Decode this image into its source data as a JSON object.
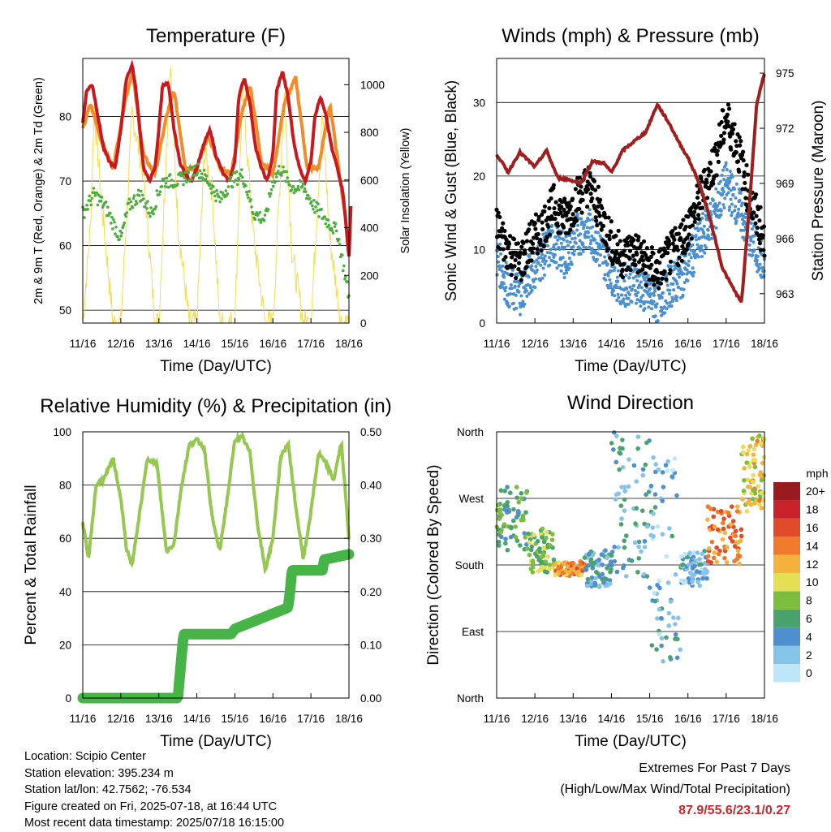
{
  "chart_data": [
    {
      "type": "line",
      "title": "Temperature (F)",
      "xlabel": "Time (Day/UTC)",
      "ylabel": "2m & 9m T (Red, Orange) & 2m Td (Green)",
      "ylabel_right": "Solar Insolation (Yellow)",
      "x_ticks": [
        "11/16",
        "12/16",
        "13/16",
        "14/16",
        "15/16",
        "16/16",
        "17/16",
        "18/16"
      ],
      "ylim": [
        48,
        89
      ],
      "y_ticks": [
        50,
        60,
        70,
        80
      ],
      "ylim_right": [
        0,
        1110
      ],
      "y_ticks_right": [
        0,
        200,
        400,
        600,
        800,
        1000
      ],
      "grid": true,
      "colors": {
        "t2m": "#c8191e",
        "t9m": "#f28c28",
        "td2m": "#4caf3c",
        "solar": "#f5dc50"
      },
      "series": [
        {
          "name": "2m T",
          "x": [
            0,
            0.1,
            0.25,
            0.4,
            0.55,
            0.7,
            0.85,
            1,
            1.15,
            1.3,
            1.4,
            1.5,
            1.6,
            1.75,
            1.9,
            2,
            2.1,
            2.25,
            2.4,
            2.55,
            2.7,
            2.85,
            3,
            3.2,
            3.35,
            3.5,
            3.7,
            3.85,
            4,
            4.1,
            4.25,
            4.4,
            4.55,
            4.7,
            4.85,
            5,
            5.1,
            5.25,
            5.4,
            5.55,
            5.7,
            5.85,
            6,
            6.1,
            6.25,
            6.4,
            6.55,
            6.7,
            6.85,
            7,
            7.05
          ],
          "values": [
            79,
            84,
            85,
            80,
            75,
            73,
            72,
            78,
            86,
            88,
            84,
            78,
            72,
            70,
            72,
            78,
            85,
            85,
            78,
            73,
            71,
            70,
            72,
            76,
            78,
            74,
            71,
            70,
            73,
            83,
            86,
            82,
            75,
            72,
            70,
            74,
            84,
            87,
            83,
            76,
            72,
            70,
            73,
            80,
            83,
            80,
            75,
            72,
            68,
            58,
            66
          ]
        },
        {
          "name": "9m T",
          "x": [
            0,
            0.2,
            0.5,
            0.8,
            1.1,
            1.3,
            1.6,
            1.9,
            2.2,
            2.4,
            2.7,
            3,
            3.3,
            3.6,
            3.9,
            4.2,
            4.4,
            4.7,
            5,
            5.3,
            5.6,
            5.9,
            6.2,
            6.5,
            6.8,
            7
          ],
          "values": [
            78,
            82,
            76,
            72,
            82,
            87,
            74,
            71,
            80,
            84,
            72,
            72,
            77,
            72,
            71,
            81,
            85,
            73,
            71,
            82,
            86,
            72,
            72,
            82,
            69,
            60
          ]
        },
        {
          "name": "2m Td",
          "x": [
            0,
            0.3,
            0.6,
            1,
            1.2,
            1.5,
            1.8,
            2.1,
            2.5,
            2.8,
            3,
            3.3,
            3.6,
            3.9,
            4.2,
            4.5,
            4.8,
            5,
            5.2,
            5.5,
            5.8,
            6.1,
            6.4,
            6.7,
            7
          ],
          "values": [
            65,
            68,
            66,
            61,
            66,
            68,
            65,
            70,
            70,
            71,
            72,
            70,
            67,
            70,
            71,
            65,
            64,
            70,
            72,
            69,
            69,
            66,
            64,
            62,
            52
          ]
        },
        {
          "name": "Solar Insolation",
          "axis": "right",
          "x": [
            0,
            0.2,
            0.3,
            0.5,
            0.8,
            1,
            1.3,
            1.6,
            1.9,
            2,
            2.3,
            2.5,
            2.8,
            3,
            3.2,
            3.4,
            3.6,
            4,
            4.2,
            4.5,
            4.8,
            5,
            5.3,
            5.5,
            5.8,
            6,
            6.3,
            6.5,
            6.8,
            7
          ],
          "values": [
            0,
            400,
            900,
            500,
            0,
            0,
            880,
            620,
            0,
            0,
            1100,
            420,
            0,
            0,
            720,
            560,
            0,
            0,
            980,
            350,
            0,
            0,
            960,
            300,
            0,
            0,
            880,
            350,
            0,
            0
          ]
        }
      ]
    },
    {
      "type": "scatter",
      "title": "Winds (mph) & Pressure (mb)",
      "xlabel": "Time (Day/UTC)",
      "ylabel": "Sonic Wind & Gust (Blue, Black)",
      "ylabel_right": "Station Pressure (Maroon)",
      "x_ticks": [
        "11/16",
        "12/16",
        "13/16",
        "14/16",
        "15/16",
        "16/16",
        "17/16",
        "18/16"
      ],
      "ylim": [
        0,
        36
      ],
      "y_ticks": [
        0,
        10,
        20,
        30
      ],
      "ylim_right": [
        961.4,
        975.8
      ],
      "y_ticks_right": [
        963,
        966,
        969,
        972,
        975
      ],
      "grid": true,
      "colors": {
        "wind": "#4a90d0",
        "gust": "#000000",
        "pressure": "#a01e1e"
      },
      "series": [
        {
          "name": "Sonic Wind",
          "x": [
            0,
            0.3,
            0.6,
            0.9,
            1.2,
            1.5,
            1.8,
            2.1,
            2.4,
            2.7,
            3,
            3.3,
            3.6,
            3.9,
            4.2,
            4.5,
            4.8,
            5.1,
            5.4,
            5.7,
            6,
            6.3,
            6.6,
            6.9,
            7
          ],
          "values": [
            9,
            5,
            4,
            7,
            9,
            11,
            9,
            12,
            13,
            10,
            7,
            5,
            6,
            4,
            3,
            5,
            6,
            9,
            12,
            15,
            19,
            16,
            12,
            9,
            6
          ]
        },
        {
          "name": "Gust",
          "x": [
            0,
            0.3,
            0.6,
            0.9,
            1.2,
            1.5,
            1.8,
            2.1,
            2.4,
            2.7,
            3,
            3.3,
            3.6,
            3.9,
            4.2,
            4.5,
            4.8,
            5.1,
            5.4,
            5.7,
            6,
            6.3,
            6.6,
            6.9,
            7
          ],
          "values": [
            13,
            10,
            8,
            11,
            13,
            16,
            14,
            17,
            19,
            15,
            11,
            9,
            10,
            8,
            7,
            9,
            11,
            14,
            18,
            22,
            28,
            24,
            17,
            13,
            10
          ]
        },
        {
          "name": "Station Pressure",
          "axis": "right",
          "x": [
            0,
            0.3,
            0.6,
            1,
            1.3,
            1.6,
            1.9,
            2.2,
            2.5,
            2.8,
            3,
            3.3,
            3.6,
            3.9,
            4.2,
            4.5,
            4.8,
            5,
            5.3,
            5.6,
            5.9,
            6.1,
            6.4,
            6.6,
            6.8,
            7
          ],
          "values": [
            970.6,
            969.6,
            970.7,
            969.9,
            970.8,
            969.3,
            969.2,
            969.0,
            970.2,
            970.1,
            969.6,
            970.8,
            971.3,
            971.8,
            973.3,
            972.3,
            971.1,
            970.4,
            969.0,
            966.9,
            964.4,
            963.6,
            962.5,
            967.6,
            973.4,
            975.0
          ]
        }
      ]
    },
    {
      "type": "line",
      "title": "Relative Humidity (%) & Precipitation (in)",
      "xlabel": "Time (Day/UTC)",
      "ylabel": "Percent & Total Rainfall",
      "x_ticks": [
        "11/16",
        "12/16",
        "13/16",
        "14/16",
        "15/16",
        "16/16",
        "17/16",
        "18/16"
      ],
      "ylim": [
        0,
        100
      ],
      "y_ticks": [
        0,
        20,
        40,
        60,
        80,
        100
      ],
      "ylim_right": [
        0,
        0.5
      ],
      "y_ticks_right": [
        "0.00",
        "0.10",
        "0.20",
        "0.30",
        "0.40",
        "0.50"
      ],
      "grid": true,
      "colors": {
        "rh": "#96c850",
        "precip": "#46b446"
      },
      "series": [
        {
          "name": "Relative Humidity",
          "x": [
            0,
            0.15,
            0.35,
            0.55,
            0.8,
            1,
            1.15,
            1.3,
            1.5,
            1.7,
            1.95,
            2.2,
            2.4,
            2.6,
            2.8,
            3,
            3.2,
            3.4,
            3.6,
            3.8,
            4,
            4.2,
            4.4,
            4.6,
            4.8,
            5,
            5.2,
            5.4,
            5.6,
            5.8,
            6,
            6.2,
            6.4,
            6.6,
            6.8,
            7
          ],
          "values": [
            66,
            52,
            80,
            82,
            90,
            75,
            56,
            50,
            70,
            90,
            88,
            55,
            58,
            80,
            95,
            97,
            94,
            68,
            55,
            75,
            97,
            98,
            92,
            65,
            48,
            60,
            90,
            96,
            72,
            52,
            70,
            92,
            88,
            82,
            96,
            60
          ]
        },
        {
          "name": "Total Precipitation",
          "axis": "right",
          "x": [
            0,
            2.5,
            2.55,
            2.6,
            2.65,
            3.9,
            4,
            5.4,
            5.45,
            5.5,
            6.3,
            6.35,
            7
          ],
          "values": [
            0,
            0,
            0.04,
            0.08,
            0.12,
            0.12,
            0.13,
            0.17,
            0.2,
            0.24,
            0.24,
            0.26,
            0.27
          ]
        }
      ]
    },
    {
      "type": "scatter",
      "title": "Wind Direction",
      "xlabel": "Time (Day/UTC)",
      "ylabel": "Direction (Colored By Speed)",
      "x_ticks": [
        "11/16",
        "12/16",
        "13/16",
        "14/16",
        "15/16",
        "16/16",
        "17/16",
        "18/16"
      ],
      "ylim": [
        0,
        360
      ],
      "y_tick_labels": [
        "North",
        "East",
        "South",
        "West",
        "North"
      ],
      "grid": true,
      "colorbar": {
        "title": "mph",
        "labels": [
          "0",
          "2",
          "4",
          "6",
          "8",
          "10",
          "12",
          "14",
          "16",
          "18",
          "20+"
        ],
        "colors": [
          "#bde6f8",
          "#87c3e8",
          "#4f8fcf",
          "#4aa36e",
          "#7dbd3e",
          "#e5df55",
          "#f6b23f",
          "#f07a2b",
          "#e04b2a",
          "#c8232a",
          "#9a1b1f"
        ]
      },
      "points_by_day": [
        {
          "day_start": 0,
          "dir_range": [
            200,
            290
          ],
          "speed": 6
        },
        {
          "day_start": 0.8,
          "dir_range": [
            170,
            230
          ],
          "speed": 8
        },
        {
          "day_start": 1.5,
          "dir_range": [
            165,
            185
          ],
          "speed": 13
        },
        {
          "day_start": 2.3,
          "dir_range": [
            150,
            200
          ],
          "speed": 4
        },
        {
          "day_start": 3,
          "dir_range": [
            160,
            360
          ],
          "speed": 4
        },
        {
          "day_start": 4,
          "dir_range": [
            40,
            340
          ],
          "speed": 3
        },
        {
          "day_start": 4.8,
          "dir_range": [
            150,
            200
          ],
          "speed": 3
        },
        {
          "day_start": 5.5,
          "dir_range": [
            180,
            260
          ],
          "speed": 14
        },
        {
          "day_start": 6.4,
          "dir_range": [
            250,
            360
          ],
          "speed": 11
        }
      ]
    }
  ],
  "info": {
    "location": "Location: Scipio Center",
    "elevation": "Station elevation: 395.234 m",
    "latlon": "Station lat/lon: 42.7562; -76.534",
    "created": "Figure created on Fri, 2025-07-18, at 16:44 UTC",
    "recent": "Most recent data timestamp: 2025/07/18 16:15:00"
  },
  "extremes": {
    "line1": "Extremes For Past 7 Days",
    "line2": "(High/Low/Max Wind/Total Precipitation)",
    "values": "87.9/55.6/23.1/0.27"
  }
}
